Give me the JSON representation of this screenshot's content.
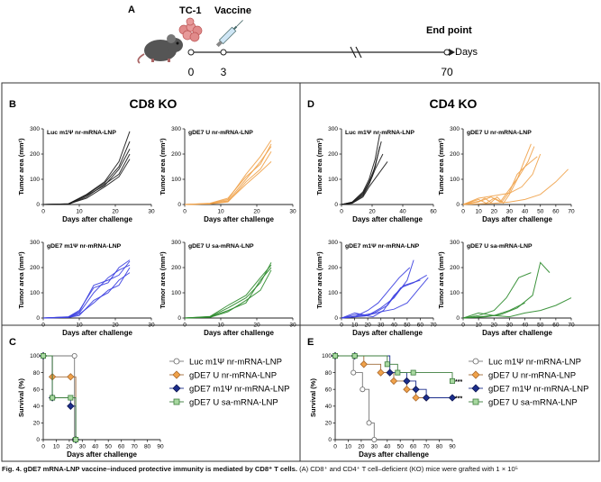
{
  "timeline": {
    "panel": "A",
    "tc1_label": "TC-1",
    "vaccine_label": "Vaccine",
    "endpoint_label": "End point",
    "days_label": "Days",
    "ticks": [
      "0",
      "3",
      "70"
    ],
    "icons": [
      "mouse-icon",
      "tumor-cells-icon",
      "syringe-icon"
    ]
  },
  "panels": {
    "B": {
      "letter": "B",
      "title": "CD8 KO"
    },
    "C": {
      "letter": "C"
    },
    "D": {
      "letter": "D",
      "title": "CD4 KO"
    },
    "E": {
      "letter": "E"
    }
  },
  "axes": {
    "tumor_ylabel": "Tumor area (mm²)",
    "tumor_xlabel": "Days after challenge",
    "survival_ylabel": "Survival (%)",
    "survival_xlabel": "Days after challenge"
  },
  "legend": [
    {
      "label": "Luc m1Ψ nr-mRNA-LNP",
      "color": "#ffffff",
      "marker": "circle"
    },
    {
      "label": "gDE7 U nr-mRNA-LNP",
      "color": "#f0a24a",
      "marker": "diamond"
    },
    {
      "label": "gDE7 m1Ψ nr-mRNA-LNP",
      "color": "#1c2e8c",
      "marker": "diamond"
    },
    {
      "label": "gDE7 U sa-mRNA-LNP",
      "color": "#a8d8a0",
      "marker": "square"
    }
  ],
  "significance": [
    "***",
    "***"
  ],
  "colors": {
    "black": "#1a1a1a",
    "orange": "#f0a24a",
    "blue": "#3a3ee0",
    "green": "#2a8a2a"
  },
  "chart_data": [
    {
      "id": "B1",
      "type": "line",
      "panel": "B",
      "title": "Luc m1Ψ nr-mRNA-LNP",
      "color": "black",
      "xlim": [
        0,
        30
      ],
      "xticks": [
        0,
        10,
        20,
        30
      ],
      "ylim": [
        0,
        300
      ],
      "yticks": [
        0,
        100,
        200,
        300
      ],
      "series": [
        {
          "x": [
            0,
            7,
            12,
            17,
            21,
            24
          ],
          "y": [
            0,
            3,
            40,
            90,
            170,
            290
          ]
        },
        {
          "x": [
            0,
            7,
            12,
            17,
            21,
            24
          ],
          "y": [
            0,
            2,
            35,
            75,
            140,
            220
          ]
        },
        {
          "x": [
            0,
            7,
            12,
            17,
            21,
            24
          ],
          "y": [
            0,
            1,
            30,
            80,
            120,
            200
          ]
        },
        {
          "x": [
            0,
            7,
            12,
            17,
            21,
            24
          ],
          "y": [
            0,
            2,
            25,
            70,
            110,
            180
          ]
        },
        {
          "x": [
            0,
            7,
            12,
            17,
            21,
            24
          ],
          "y": [
            0,
            3,
            38,
            85,
            150,
            250
          ]
        }
      ]
    },
    {
      "id": "B2",
      "type": "line",
      "panel": "B",
      "title": "gDE7 U nr-mRNA-LNP",
      "color": "orange",
      "xlim": [
        0,
        30
      ],
      "xticks": [
        0,
        10,
        20,
        30
      ],
      "ylim": [
        0,
        300
      ],
      "yticks": [
        0,
        100,
        200,
        300
      ],
      "series": [
        {
          "x": [
            0,
            7,
            12,
            17,
            21,
            24
          ],
          "y": [
            0,
            4,
            20,
            120,
            190,
            255
          ]
        },
        {
          "x": [
            0,
            7,
            12,
            17,
            21,
            24
          ],
          "y": [
            0,
            3,
            15,
            100,
            170,
            230
          ]
        },
        {
          "x": [
            0,
            7,
            12,
            17,
            21,
            24
          ],
          "y": [
            0,
            2,
            10,
            90,
            140,
            210
          ]
        },
        {
          "x": [
            0,
            7,
            12,
            17,
            21,
            24
          ],
          "y": [
            0,
            3,
            12,
            80,
            130,
            170
          ]
        },
        {
          "x": [
            0,
            7,
            12,
            17,
            21,
            24
          ],
          "y": [
            0,
            5,
            25,
            110,
            160,
            240
          ]
        }
      ]
    },
    {
      "id": "B3",
      "type": "line",
      "panel": "B",
      "title": "gDE7 m1Ψ nr-mRNA-LNP",
      "color": "blue",
      "xlim": [
        0,
        30
      ],
      "xticks": [
        0,
        10,
        20,
        30
      ],
      "ylim": [
        0,
        300
      ],
      "yticks": [
        0,
        100,
        200,
        300
      ],
      "series": [
        {
          "x": [
            0,
            7,
            10,
            14,
            18,
            21,
            24
          ],
          "y": [
            0,
            5,
            30,
            120,
            140,
            200,
            230
          ]
        },
        {
          "x": [
            0,
            7,
            10,
            14,
            18,
            21,
            24
          ],
          "y": [
            0,
            4,
            20,
            100,
            160,
            190,
            210
          ]
        },
        {
          "x": [
            0,
            7,
            10,
            14,
            18,
            21,
            24
          ],
          "y": [
            0,
            3,
            15,
            60,
            110,
            130,
            200
          ]
        },
        {
          "x": [
            0,
            7,
            10,
            14,
            18,
            21,
            24
          ],
          "y": [
            0,
            2,
            10,
            70,
            100,
            150,
            180
          ]
        },
        {
          "x": [
            0,
            7,
            10,
            14,
            18,
            21,
            24
          ],
          "y": [
            0,
            4,
            25,
            130,
            150,
            170,
            225
          ]
        }
      ]
    },
    {
      "id": "B4",
      "type": "line",
      "panel": "B",
      "title": "gDE7 U sa-mRNA-LNP",
      "color": "green",
      "xlim": [
        0,
        30
      ],
      "xticks": [
        0,
        10,
        20,
        30
      ],
      "ylim": [
        0,
        300
      ],
      "yticks": [
        0,
        100,
        200,
        300
      ],
      "series": [
        {
          "x": [
            0,
            7,
            12,
            17,
            21,
            24
          ],
          "y": [
            0,
            5,
            40,
            80,
            140,
            220
          ]
        },
        {
          "x": [
            0,
            7,
            12,
            17,
            21,
            24
          ],
          "y": [
            0,
            4,
            30,
            60,
            150,
            200
          ]
        },
        {
          "x": [
            0,
            7,
            12,
            17,
            21,
            24
          ],
          "y": [
            0,
            3,
            25,
            70,
            110,
            190
          ]
        },
        {
          "x": [
            0,
            7,
            12,
            17,
            21,
            24
          ],
          "y": [
            0,
            6,
            50,
            90,
            160,
            210
          ]
        }
      ]
    },
    {
      "id": "D1",
      "type": "line",
      "panel": "D",
      "title": "Luc m1Ψ nr-mRNA-LNP",
      "color": "black",
      "xlim": [
        0,
        60
      ],
      "xticks": [
        0,
        20,
        40,
        60
      ],
      "ylim": [
        0,
        300
      ],
      "yticks": [
        0,
        100,
        200,
        300
      ],
      "series": [
        {
          "x": [
            0,
            7,
            14,
            18,
            22,
            25
          ],
          "y": [
            0,
            10,
            50,
            100,
            180,
            280
          ]
        },
        {
          "x": [
            0,
            7,
            14,
            18,
            22,
            25
          ],
          "y": [
            0,
            8,
            40,
            90,
            150,
            230
          ]
        },
        {
          "x": [
            0,
            7,
            14,
            18,
            22,
            27
          ],
          "y": [
            0,
            6,
            35,
            80,
            140,
            200
          ]
        },
        {
          "x": [
            0,
            7,
            14,
            18,
            24,
            30
          ],
          "y": [
            0,
            5,
            30,
            70,
            120,
            170
          ]
        },
        {
          "x": [
            0,
            7,
            14,
            20,
            26
          ],
          "y": [
            0,
            9,
            45,
            110,
            250
          ]
        }
      ]
    },
    {
      "id": "D2",
      "type": "line",
      "panel": "D",
      "title": "gDE7 U nr-mRNA-LNP",
      "color": "orange",
      "xlim": [
        0,
        70
      ],
      "xticks": [
        0,
        10,
        20,
        30,
        40,
        50,
        60,
        70
      ],
      "ylim": [
        0,
        300
      ],
      "yticks": [
        0,
        100,
        200,
        300
      ],
      "series": [
        {
          "x": [
            0,
            10,
            14,
            18,
            22,
            26,
            30,
            35,
            40,
            44
          ],
          "y": [
            0,
            10,
            25,
            8,
            30,
            5,
            40,
            100,
            180,
            240
          ]
        },
        {
          "x": [
            0,
            10,
            15,
            20,
            25,
            30,
            35,
            40,
            48
          ],
          "y": [
            0,
            20,
            5,
            25,
            10,
            50,
            120,
            150,
            190
          ]
        },
        {
          "x": [
            0,
            12,
            18,
            24,
            30,
            36,
            42,
            46
          ],
          "y": [
            0,
            15,
            30,
            10,
            60,
            110,
            170,
            230
          ]
        },
        {
          "x": [
            0,
            20,
            30,
            40,
            50,
            60,
            68
          ],
          "y": [
            0,
            5,
            10,
            20,
            40,
            90,
            140
          ]
        },
        {
          "x": [
            0,
            10,
            20,
            30,
            38,
            45,
            50
          ],
          "y": [
            0,
            25,
            35,
            45,
            70,
            120,
            200
          ]
        }
      ]
    },
    {
      "id": "D3",
      "type": "line",
      "panel": "D",
      "title": "gDE7 m1Ψ nr-mRNA-LNP",
      "color": "blue",
      "xlim": [
        0,
        70
      ],
      "xticks": [
        0,
        10,
        20,
        30,
        40,
        50,
        60,
        70
      ],
      "ylim": [
        0,
        300
      ],
      "yticks": [
        0,
        100,
        200,
        300
      ],
      "series": [
        {
          "x": [
            0,
            10,
            20,
            30,
            40,
            50,
            55
          ],
          "y": [
            0,
            20,
            10,
            40,
            80,
            150,
            230
          ]
        },
        {
          "x": [
            0,
            10,
            20,
            28,
            36,
            44,
            52
          ],
          "y": [
            0,
            5,
            30,
            60,
            110,
            160,
            200
          ]
        },
        {
          "x": [
            0,
            15,
            25,
            35,
            45,
            55,
            65
          ],
          "y": [
            0,
            10,
            20,
            50,
            120,
            140,
            170
          ]
        },
        {
          "x": [
            0,
            12,
            24,
            32,
            40,
            48,
            60
          ],
          "y": [
            0,
            15,
            5,
            30,
            90,
            130,
            150
          ]
        },
        {
          "x": [
            0,
            18,
            30,
            40,
            50,
            58,
            66
          ],
          "y": [
            0,
            8,
            25,
            35,
            60,
            110,
            160
          ]
        }
      ]
    },
    {
      "id": "D4",
      "type": "line",
      "panel": "D",
      "title": "gDE7 U sa-mRNA-LNP",
      "color": "green",
      "xlim": [
        0,
        70
      ],
      "xticks": [
        0,
        10,
        20,
        30,
        40,
        50,
        60,
        70
      ],
      "ylim": [
        0,
        300
      ],
      "yticks": [
        0,
        100,
        200,
        300
      ],
      "series": [
        {
          "x": [
            0,
            10,
            20,
            28,
            36,
            44
          ],
          "y": [
            0,
            10,
            30,
            80,
            160,
            180
          ]
        },
        {
          "x": [
            0,
            15,
            25,
            35,
            45,
            50,
            56
          ],
          "y": [
            0,
            5,
            15,
            40,
            90,
            220,
            180
          ]
        },
        {
          "x": [
            0,
            20,
            30,
            40,
            50,
            60,
            70
          ],
          "y": [
            0,
            10,
            5,
            20,
            30,
            50,
            80
          ]
        },
        {
          "x": [
            0,
            10,
            20,
            30,
            40
          ],
          "y": [
            0,
            20,
            10,
            30,
            60
          ]
        }
      ]
    },
    {
      "id": "C",
      "type": "line",
      "panel": "C",
      "subtype": "survival",
      "xlim": [
        0,
        90
      ],
      "xticks": [
        0,
        10,
        20,
        30,
        40,
        50,
        60,
        70,
        80,
        90
      ],
      "ylim": [
        0,
        100
      ],
      "yticks": [
        0,
        20,
        40,
        60,
        80,
        100
      ],
      "series": [
        {
          "name": "Luc m1Ψ nr-mRNA-LNP",
          "x": [
            0,
            24,
            24
          ],
          "y": [
            100,
            100,
            0
          ]
        },
        {
          "name": "gDE7 U nr-mRNA-LNP",
          "x": [
            0,
            7,
            21,
            25
          ],
          "y": [
            100,
            75,
            75,
            0
          ]
        },
        {
          "name": "gDE7 m1Ψ nr-mRNA-LNP",
          "x": [
            0,
            7,
            21,
            25
          ],
          "y": [
            100,
            50,
            40,
            0
          ]
        },
        {
          "name": "gDE7 U sa-mRNA-LNP",
          "x": [
            0,
            7,
            21,
            25
          ],
          "y": [
            100,
            50,
            50,
            0
          ]
        }
      ]
    },
    {
      "id": "E",
      "type": "line",
      "panel": "E",
      "subtype": "survival",
      "xlim": [
        0,
        90
      ],
      "xticks": [
        0,
        10,
        20,
        30,
        40,
        50,
        60,
        70,
        80,
        90
      ],
      "ylim": [
        0,
        100
      ],
      "yticks": [
        0,
        20,
        40,
        60,
        80,
        100
      ],
      "series": [
        {
          "name": "Luc m1Ψ nr-mRNA-LNP",
          "x": [
            0,
            14,
            21,
            26,
            30
          ],
          "y": [
            100,
            80,
            60,
            20,
            0
          ]
        },
        {
          "name": "gDE7 U nr-mRNA-LNP",
          "x": [
            0,
            22,
            35,
            45,
            55,
            62,
            70
          ],
          "y": [
            100,
            90,
            80,
            70,
            60,
            50,
            50
          ]
        },
        {
          "name": "gDE7 m1Ψ nr-mRNA-LNP",
          "x": [
            0,
            15,
            42,
            55,
            62,
            70,
            90
          ],
          "y": [
            100,
            100,
            80,
            70,
            60,
            50,
            50
          ]
        },
        {
          "name": "gDE7 U sa-mRNA-LNP",
          "x": [
            0,
            15,
            40,
            48,
            60,
            90
          ],
          "y": [
            100,
            100,
            90,
            80,
            80,
            70
          ]
        }
      ]
    }
  ],
  "caption": {
    "bold": "Fig. 4. gDE7 mRNA-LNP vaccine–induced protective immunity is mediated by CD8⁺ T cells.",
    "rest": " (A) CD8⁺ and CD4⁺ T cell–deficient (KO) mice were grafted with 1 × 10⁵"
  }
}
